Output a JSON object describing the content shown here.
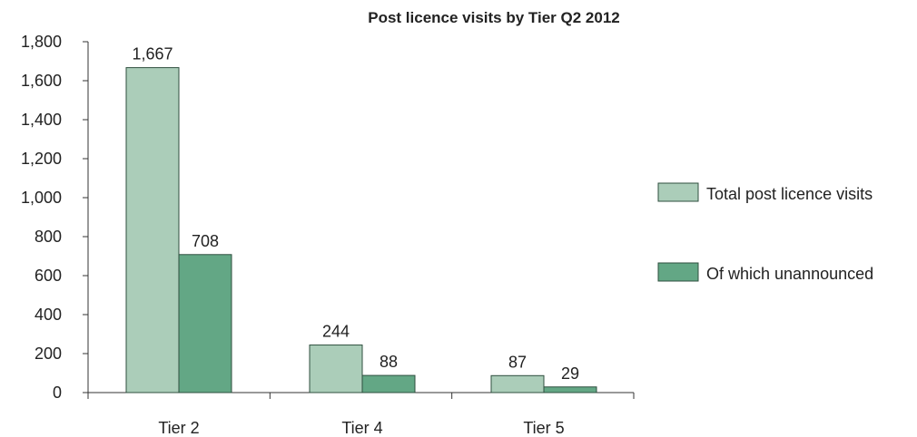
{
  "chart_data": {
    "type": "bar",
    "title": "Post licence visits by Tier Q2 2012",
    "categories": [
      "Tier 2",
      "Tier 4",
      "Tier 5"
    ],
    "series": [
      {
        "name": "Total post licence visits",
        "values": [
          1667,
          244,
          87
        ],
        "color": "#abcdb9"
      },
      {
        "name": "Of which unannounced",
        "values": [
          708,
          88,
          29
        ],
        "color": "#63a785"
      }
    ],
    "y_ticks": [
      "0",
      "200",
      "400",
      "600",
      "800",
      "1,000",
      "1,200",
      "1,400",
      "1,600",
      "1,800"
    ],
    "data_labels": [
      [
        "1,667",
        "244",
        "87"
      ],
      [
        "708",
        "88",
        "29"
      ]
    ],
    "ylim": [
      0,
      1800
    ],
    "grid": false,
    "legend_position": "right"
  }
}
